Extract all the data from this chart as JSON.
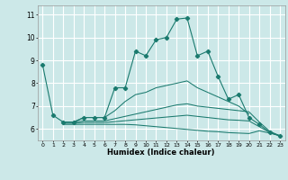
{
  "xlabel": "Humidex (Indice chaleur)",
  "xlim": [
    -0.5,
    23.5
  ],
  "ylim": [
    5.5,
    11.4
  ],
  "yticks": [
    6,
    7,
    8,
    9,
    10,
    11
  ],
  "xticks": [
    0,
    1,
    2,
    3,
    4,
    5,
    6,
    7,
    8,
    9,
    10,
    11,
    12,
    13,
    14,
    15,
    16,
    17,
    18,
    19,
    20,
    21,
    22,
    23
  ],
  "bg_color": "#cce8e8",
  "line_color": "#1a7a6e",
  "grid_color": "#ffffff",
  "series": [
    {
      "x": [
        0,
        1,
        2,
        3,
        4,
        5,
        6,
        7,
        8,
        9,
        10,
        11,
        12,
        13,
        14,
        15,
        16,
        17,
        18,
        19,
        20,
        21,
        22,
        23
      ],
      "y": [
        8.8,
        6.6,
        6.3,
        6.3,
        6.5,
        6.5,
        6.5,
        7.8,
        7.8,
        9.4,
        9.2,
        9.9,
        10.0,
        10.8,
        10.85,
        9.2,
        9.4,
        8.3,
        7.3,
        7.5,
        6.5,
        6.2,
        5.85,
        5.7
      ],
      "has_markers": true
    },
    {
      "x": [
        2,
        3,
        4,
        5,
        6,
        7,
        8,
        9,
        10,
        11,
        12,
        13,
        14,
        15,
        16,
        17,
        18,
        19,
        20
      ],
      "y": [
        6.3,
        6.3,
        6.5,
        6.5,
        6.5,
        6.8,
        7.2,
        7.5,
        7.6,
        7.8,
        7.9,
        8.0,
        8.1,
        7.8,
        7.6,
        7.4,
        7.2,
        7.0,
        6.65
      ],
      "has_markers": false
    },
    {
      "x": [
        2,
        3,
        4,
        5,
        6,
        7,
        8,
        9,
        10,
        11,
        12,
        13,
        14,
        15,
        16,
        17,
        18,
        19,
        20,
        21,
        22,
        23
      ],
      "y": [
        6.3,
        6.3,
        6.35,
        6.35,
        6.35,
        6.45,
        6.55,
        6.65,
        6.75,
        6.85,
        6.95,
        7.05,
        7.1,
        7.0,
        6.95,
        6.9,
        6.85,
        6.8,
        6.75,
        6.3,
        5.9,
        5.7
      ],
      "has_markers": false
    },
    {
      "x": [
        2,
        3,
        4,
        5,
        6,
        7,
        8,
        9,
        10,
        11,
        12,
        13,
        14,
        15,
        16,
        17,
        18,
        19,
        20,
        21,
        22,
        23
      ],
      "y": [
        6.25,
        6.25,
        6.28,
        6.28,
        6.28,
        6.32,
        6.36,
        6.4,
        6.44,
        6.48,
        6.52,
        6.56,
        6.6,
        6.55,
        6.5,
        6.45,
        6.4,
        6.38,
        6.35,
        6.1,
        5.85,
        5.7
      ],
      "has_markers": false
    },
    {
      "x": [
        2,
        3,
        4,
        5,
        6,
        7,
        8,
        9,
        10,
        11,
        12,
        13,
        14,
        15,
        16,
        17,
        18,
        19,
        20,
        21,
        22,
        23
      ],
      "y": [
        6.2,
        6.2,
        6.2,
        6.2,
        6.2,
        6.2,
        6.2,
        6.18,
        6.14,
        6.1,
        6.06,
        6.02,
        5.98,
        5.94,
        5.9,
        5.88,
        5.84,
        5.82,
        5.8,
        5.92,
        5.82,
        5.7
      ],
      "has_markers": false
    }
  ]
}
